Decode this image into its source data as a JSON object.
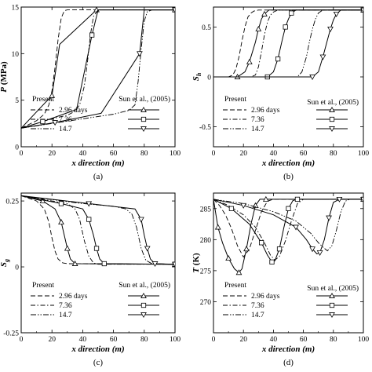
{
  "chart_data": [
    {
      "id": "a",
      "type": "line",
      "panel_label": "(a)",
      "ylabel": "P (MPa)",
      "ylabel_main": "P",
      "ylabel_sub": "",
      "ylabel_unit": " (MPa)",
      "xlabel": "x direction (m)",
      "xlim": [
        0,
        100
      ],
      "ylim": [
        0,
        15
      ],
      "x_ticks": [
        0,
        20,
        40,
        60,
        80,
        100
      ],
      "y_ticks": [
        0,
        5,
        10,
        15
      ],
      "legend": {
        "present_label": "Present",
        "ref_label": "Sun et al., (2005)",
        "entries": [
          "2.96 days",
          "7.36",
          "14.7"
        ]
      },
      "series": [
        {
          "name": "2.96 days",
          "style": "dash",
          "marker": "triangle-up",
          "x": [
            0,
            10,
            15,
            18,
            20,
            22,
            24,
            26,
            28,
            30,
            35,
            50,
            60,
            80,
            100
          ],
          "y": [
            2.0,
            2.8,
            3.5,
            4.5,
            6.0,
            8.5,
            11.5,
            13.8,
            14.6,
            14.7,
            14.7,
            14.7,
            14.7,
            14.7,
            14.7
          ],
          "ref_x": [
            0,
            20,
            25,
            49,
            100
          ],
          "ref_y": [
            2.0,
            5.5,
            11.0,
            14.7,
            14.7
          ]
        },
        {
          "name": "7.36",
          "style": "dash-dot",
          "marker": "square",
          "x": [
            0,
            10,
            20,
            30,
            35,
            38,
            41,
            43,
            45,
            47,
            50,
            60,
            80,
            100
          ],
          "y": [
            2.0,
            2.5,
            3.0,
            3.4,
            3.8,
            4.5,
            6.5,
            9.0,
            12.0,
            14.0,
            14.7,
            14.7,
            14.7,
            14.7
          ],
          "ref_x": [
            0,
            14,
            36,
            46,
            50,
            100
          ],
          "ref_y": [
            2.0,
            2.7,
            4.0,
            12.0,
            14.7,
            14.7
          ]
        },
        {
          "name": "14.7",
          "style": "dash-dot-dot",
          "marker": "triangle-down",
          "x": [
            0,
            20,
            40,
            60,
            70,
            74,
            76,
            78,
            80,
            82,
            85,
            100
          ],
          "y": [
            2.0,
            2.5,
            3.0,
            3.5,
            3.9,
            4.5,
            7.0,
            10.5,
            13.5,
            14.5,
            14.7,
            14.7
          ],
          "ref_x": [
            0,
            22,
            52,
            77,
            80,
            100
          ],
          "ref_y": [
            2.0,
            2.6,
            3.6,
            10.0,
            14.7,
            14.7
          ]
        }
      ]
    },
    {
      "id": "b",
      "type": "line",
      "panel_label": "(b)",
      "ylabel": "S_h",
      "ylabel_main": "S",
      "ylabel_sub": "h",
      "ylabel_unit": "",
      "xlabel": "x direction (m)",
      "xlim": [
        0,
        100
      ],
      "ylim": [
        -0.7,
        0.7
      ],
      "x_ticks": [
        0,
        20,
        40,
        60,
        80,
        100
      ],
      "y_ticks": [
        -0.5,
        0,
        0.5
      ],
      "legend": {
        "present_label": "Present",
        "ref_label": "Sun et al., (2005)",
        "entries": [
          "2.96 days",
          "7.36",
          "14.7"
        ]
      },
      "series": [
        {
          "name": "2.96 days",
          "style": "dash",
          "marker": "triangle-up",
          "x": [
            0,
            10,
            13,
            15,
            17,
            19,
            21,
            23,
            25,
            27,
            30,
            100
          ],
          "y": [
            0.0,
            0.0,
            0.02,
            0.08,
            0.2,
            0.36,
            0.5,
            0.6,
            0.64,
            0.66,
            0.67,
            0.67
          ],
          "ref_x": [
            0,
            16,
            21,
            24,
            28,
            30,
            32,
            34,
            37,
            100
          ],
          "ref_y": [
            0.0,
            0.0,
            0.05,
            0.15,
            0.35,
            0.48,
            0.58,
            0.63,
            0.67,
            0.67
          ]
        },
        {
          "name": "7.36",
          "style": "dash-dot",
          "marker": "square",
          "x": [
            0,
            25,
            28,
            30,
            32,
            34,
            36,
            38,
            40,
            43,
            100
          ],
          "y": [
            0.0,
            0.0,
            0.02,
            0.1,
            0.25,
            0.42,
            0.55,
            0.62,
            0.65,
            0.67,
            0.67
          ],
          "ref_x": [
            0,
            36,
            40,
            43,
            46,
            48,
            50,
            52,
            55,
            100
          ],
          "ref_y": [
            0.0,
            0.0,
            0.05,
            0.18,
            0.38,
            0.5,
            0.58,
            0.64,
            0.67,
            0.67
          ]
        },
        {
          "name": "14.7",
          "style": "dash-dot-dot",
          "marker": "triangle-down",
          "x": [
            0,
            56,
            59,
            62,
            64,
            66,
            68,
            70,
            73,
            100
          ],
          "y": [
            0.0,
            0.0,
            0.05,
            0.2,
            0.35,
            0.48,
            0.58,
            0.64,
            0.67,
            0.67
          ],
          "ref_x": [
            0,
            66,
            70,
            73,
            76,
            78,
            80,
            82,
            85,
            100
          ],
          "ref_y": [
            0.0,
            0.0,
            0.05,
            0.2,
            0.37,
            0.48,
            0.57,
            0.63,
            0.67,
            0.67
          ]
        }
      ]
    },
    {
      "id": "c",
      "type": "line",
      "panel_label": "(c)",
      "ylabel": "S_g",
      "ylabel_main": "S",
      "ylabel_sub": "g",
      "ylabel_unit": "",
      "xlabel": "x direction (m)",
      "xlim": [
        0,
        100
      ],
      "ylim": [
        -0.25,
        0.28
      ],
      "x_ticks": [
        0,
        20,
        40,
        60,
        80,
        100
      ],
      "y_ticks": [
        -0.25,
        0,
        0.25
      ],
      "legend": {
        "present_label": "Present",
        "ref_label": "Sun et al., (2005)",
        "entries": [
          "2.96 days",
          "7.36",
          "14.7"
        ]
      },
      "series": [
        {
          "name": "2.96 days",
          "style": "dash",
          "marker": "triangle-up",
          "x": [
            0,
            10,
            15,
            18,
            20,
            22,
            24,
            27,
            30,
            100
          ],
          "y": [
            0.27,
            0.25,
            0.22,
            0.17,
            0.11,
            0.06,
            0.03,
            0.015,
            0.012,
            0.01
          ],
          "ref_x": [
            0,
            14,
            22,
            26,
            28,
            30,
            32,
            35,
            100
          ],
          "ref_y": [
            0.27,
            0.25,
            0.22,
            0.17,
            0.12,
            0.07,
            0.03,
            0.012,
            0.01
          ]
        },
        {
          "name": "7.36",
          "style": "dash-dot",
          "marker": "square",
          "x": [
            0,
            20,
            30,
            35,
            38,
            41,
            44,
            47,
            50,
            100
          ],
          "y": [
            0.27,
            0.25,
            0.24,
            0.22,
            0.18,
            0.1,
            0.04,
            0.015,
            0.01,
            0.01
          ],
          "ref_x": [
            0,
            26,
            40,
            44,
            47,
            49,
            51,
            54,
            100
          ],
          "ref_y": [
            0.27,
            0.24,
            0.22,
            0.18,
            0.12,
            0.07,
            0.03,
            0.012,
            0.01
          ]
        },
        {
          "name": "14.7",
          "style": "dash-dot-dot",
          "marker": "triangle-down",
          "x": [
            0,
            40,
            60,
            68,
            72,
            75,
            78,
            81,
            85,
            100
          ],
          "y": [
            0.27,
            0.24,
            0.23,
            0.22,
            0.2,
            0.15,
            0.07,
            0.025,
            0.012,
            0.01
          ],
          "ref_x": [
            0,
            44,
            74,
            78,
            80,
            82,
            84,
            87,
            100
          ],
          "ref_y": [
            0.27,
            0.24,
            0.22,
            0.18,
            0.12,
            0.07,
            0.03,
            0.012,
            0.01
          ]
        }
      ]
    },
    {
      "id": "d",
      "type": "line",
      "panel_label": "(d)",
      "ylabel": "T (K)",
      "ylabel_main": "T",
      "ylabel_sub": "",
      "ylabel_unit": " (K)",
      "xlabel": "x direction (m)",
      "xlim": [
        0,
        100
      ],
      "ylim": [
        265,
        287.5
      ],
      "x_ticks": [
        0,
        20,
        40,
        60,
        80,
        100
      ],
      "y_ticks": [
        270,
        275,
        280,
        285
      ],
      "legend": {
        "present_label": "Present",
        "ref_label": "Sun et al., (2005)",
        "entries": [
          "2.96 days",
          "7.36",
          "14.7"
        ]
      },
      "series": [
        {
          "name": "2.96 days",
          "style": "dash",
          "marker": "triangle-up",
          "x": [
            0,
            4,
            8,
            12,
            16,
            20,
            24,
            28,
            32,
            36,
            40,
            100
          ],
          "y": [
            286.5,
            285.5,
            284.0,
            281.8,
            279.0,
            277.2,
            278.5,
            281.5,
            284.5,
            286.2,
            286.5,
            286.5
          ],
          "ref_x": [
            0,
            3,
            6,
            10,
            14,
            17,
            19,
            22,
            25,
            28,
            31,
            35,
            100
          ],
          "ref_y": [
            286.5,
            282.0,
            279.5,
            277.0,
            275.3,
            274.7,
            275.3,
            278.5,
            282.5,
            285.5,
            286.5,
            286.5,
            286.5
          ]
        },
        {
          "name": "7.36",
          "style": "dash-dot",
          "marker": "square",
          "x": [
            0,
            10,
            20,
            28,
            34,
            38,
            41,
            44,
            48,
            52,
            56,
            60,
            100
          ],
          "y": [
            286.5,
            285.5,
            284.0,
            282.0,
            279.5,
            277.5,
            276.7,
            277.3,
            279.8,
            283.0,
            285.8,
            286.5,
            286.5
          ],
          "ref_x": [
            0,
            12,
            24,
            32,
            36,
            39,
            41,
            44,
            47,
            50,
            53,
            56,
            100
          ],
          "ref_y": [
            286.5,
            285.0,
            282.5,
            279.5,
            277.5,
            276.4,
            276.6,
            278.5,
            282.0,
            285.0,
            286.3,
            286.5,
            286.5
          ]
        },
        {
          "name": "14.7",
          "style": "dash-dot-dot",
          "marker": "triangle-down",
          "x": [
            0,
            20,
            40,
            55,
            65,
            70,
            73,
            76,
            79,
            82,
            85,
            88,
            91,
            100
          ],
          "y": [
            286.5,
            285.8,
            284.5,
            283.0,
            281.0,
            279.5,
            278.8,
            278.2,
            279.0,
            281.5,
            284.5,
            286.2,
            286.5,
            286.5
          ],
          "ref_x": [
            0,
            20,
            40,
            55,
            62,
            66,
            69,
            71,
            74,
            77,
            80,
            84,
            100
          ],
          "ref_y": [
            286.5,
            285.5,
            284.0,
            282.0,
            280.0,
            278.5,
            277.7,
            277.9,
            280.0,
            283.5,
            286.0,
            286.5,
            286.5
          ]
        }
      ]
    }
  ]
}
